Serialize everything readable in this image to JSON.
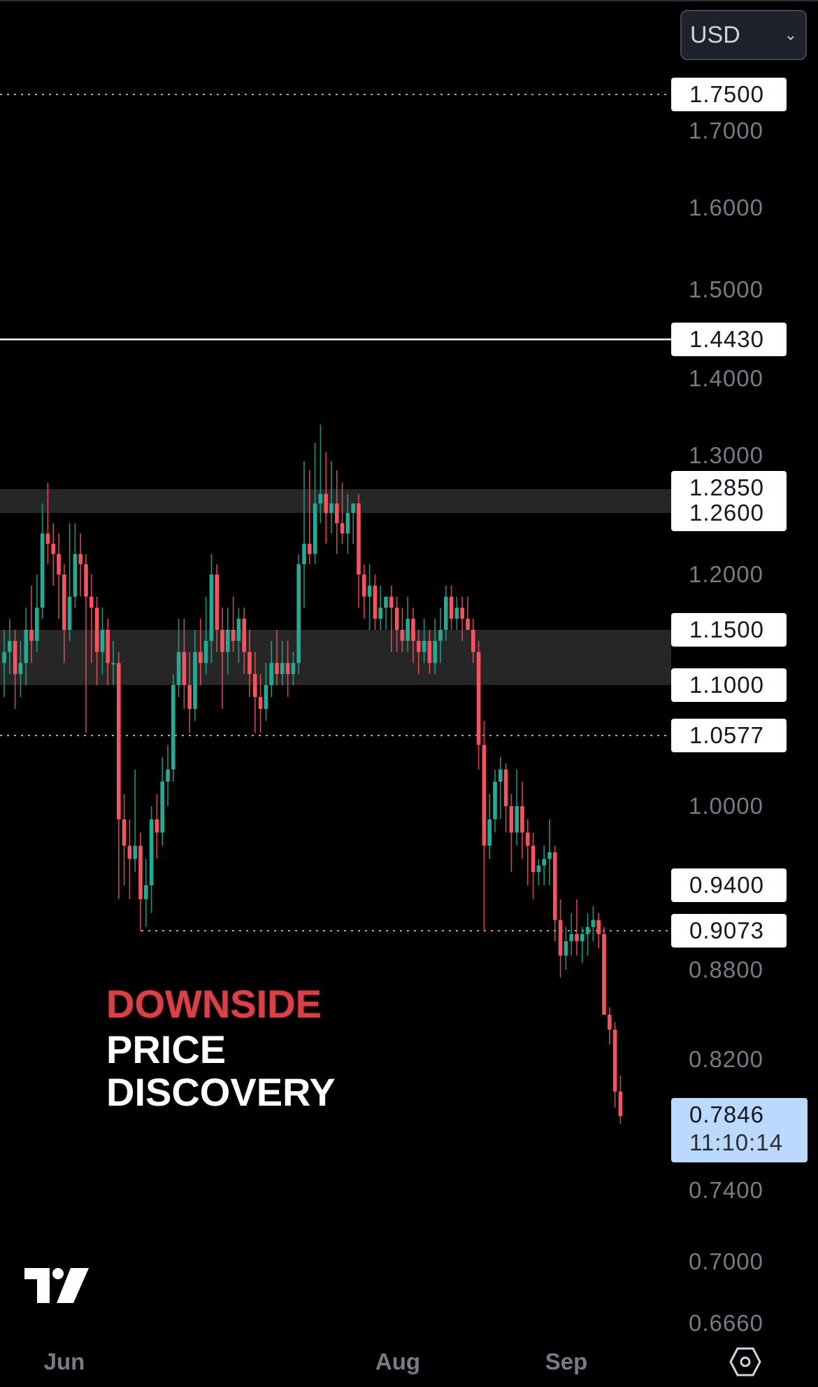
{
  "currency_selector": {
    "label": "USD",
    "icon": "chevron-down-icon"
  },
  "colors": {
    "up": "#22ab94",
    "down": "#f7525f",
    "zone": "#262626",
    "current_price_bg": "#bbd9fb"
  },
  "overlay_text": {
    "line1": "DOWNSIDE",
    "line2": "PRICE",
    "line3": "DISCOVERY"
  },
  "settings_icon": "gear-hexagon-icon",
  "logo": "TV",
  "chart_data": {
    "type": "candlestick",
    "y_scale": "log",
    "ylim": [
      0.666,
      1.75
    ],
    "x_tick_labels": [
      {
        "label": "Jun",
        "index": 11
      },
      {
        "label": "Aug",
        "index": 72
      },
      {
        "label": "Sep",
        "index": 103
      }
    ],
    "y_tick_labels": [
      "1.7000",
      "1.6000",
      "1.5000",
      "1.4000",
      "1.3000",
      "1.2000",
      "1.0000",
      "0.8800",
      "0.8200",
      "0.7400",
      "0.7000",
      "0.6660"
    ],
    "level_labels": [
      {
        "value": "1.7500",
        "line": "dotted"
      },
      {
        "value": "1.4430",
        "line": "solid"
      },
      {
        "value": "1.0577",
        "line": "dotted"
      },
      {
        "value": "0.9073",
        "line": "dotted"
      },
      {
        "value": "1.1500",
        "line": "zone"
      },
      {
        "value": "1.1000",
        "line": "zone"
      },
      {
        "value": "0.9400",
        "line": "none"
      }
    ],
    "zone_labels": {
      "top": "1.2850",
      "bottom": "1.2600"
    },
    "zones": [
      [
        1.26,
        1.285
      ],
      [
        1.1,
        1.15
      ]
    ],
    "current_price": {
      "value": "0.7846",
      "countdown": "11:10:14"
    },
    "candles": [
      [
        1.12,
        1.15,
        1.09,
        1.13
      ],
      [
        1.13,
        1.16,
        1.11,
        1.14
      ],
      [
        1.14,
        1.15,
        1.08,
        1.11
      ],
      [
        1.11,
        1.14,
        1.09,
        1.12
      ],
      [
        1.12,
        1.17,
        1.1,
        1.15
      ],
      [
        1.15,
        1.19,
        1.12,
        1.14
      ],
      [
        1.14,
        1.2,
        1.13,
        1.17
      ],
      [
        1.17,
        1.27,
        1.16,
        1.24
      ],
      [
        1.24,
        1.29,
        1.21,
        1.23
      ],
      [
        1.23,
        1.25,
        1.19,
        1.22
      ],
      [
        1.22,
        1.24,
        1.16,
        1.2
      ],
      [
        1.2,
        1.21,
        1.12,
        1.15
      ],
      [
        1.15,
        1.25,
        1.14,
        1.18
      ],
      [
        1.18,
        1.25,
        1.17,
        1.22
      ],
      [
        1.22,
        1.24,
        1.18,
        1.21
      ],
      [
        1.21,
        1.22,
        1.06,
        1.18
      ],
      [
        1.18,
        1.2,
        1.12,
        1.17
      ],
      [
        1.17,
        1.18,
        1.1,
        1.13
      ],
      [
        1.13,
        1.17,
        1.11,
        1.15
      ],
      [
        1.15,
        1.16,
        1.1,
        1.12
      ],
      [
        1.12,
        1.14,
        1.1,
        1.12
      ],
      [
        1.12,
        1.13,
        0.93,
        0.99
      ],
      [
        0.99,
        1.01,
        0.94,
        0.97
      ],
      [
        0.97,
        0.99,
        0.93,
        0.96
      ],
      [
        0.96,
        1.03,
        0.95,
        0.97
      ],
      [
        0.97,
        0.98,
        0.907,
        0.93
      ],
      [
        0.93,
        0.96,
        0.91,
        0.94
      ],
      [
        0.94,
        1.0,
        0.92,
        0.99
      ],
      [
        0.99,
        1.01,
        0.96,
        0.98
      ],
      [
        0.98,
        1.04,
        0.97,
        1.02
      ],
      [
        1.02,
        1.05,
        1.0,
        1.03
      ],
      [
        1.03,
        1.11,
        1.02,
        1.1
      ],
      [
        1.1,
        1.16,
        1.09,
        1.13
      ],
      [
        1.13,
        1.16,
        1.08,
        1.1
      ],
      [
        1.1,
        1.13,
        1.06,
        1.08
      ],
      [
        1.08,
        1.15,
        1.07,
        1.13
      ],
      [
        1.13,
        1.16,
        1.1,
        1.12
      ],
      [
        1.12,
        1.18,
        1.11,
        1.14
      ],
      [
        1.14,
        1.22,
        1.12,
        1.2
      ],
      [
        1.2,
        1.21,
        1.13,
        1.15
      ],
      [
        1.15,
        1.17,
        1.08,
        1.13
      ],
      [
        1.13,
        1.17,
        1.11,
        1.15
      ],
      [
        1.15,
        1.18,
        1.13,
        1.14
      ],
      [
        1.14,
        1.17,
        1.12,
        1.16
      ],
      [
        1.16,
        1.17,
        1.11,
        1.13
      ],
      [
        1.13,
        1.15,
        1.09,
        1.11
      ],
      [
        1.11,
        1.13,
        1.06,
        1.09
      ],
      [
        1.09,
        1.11,
        1.06,
        1.08
      ],
      [
        1.08,
        1.12,
        1.07,
        1.1
      ],
      [
        1.1,
        1.14,
        1.09,
        1.12
      ],
      [
        1.12,
        1.15,
        1.1,
        1.11
      ],
      [
        1.11,
        1.14,
        1.1,
        1.12
      ],
      [
        1.12,
        1.14,
        1.09,
        1.11
      ],
      [
        1.11,
        1.13,
        1.1,
        1.12
      ],
      [
        1.12,
        1.22,
        1.11,
        1.21
      ],
      [
        1.21,
        1.31,
        1.17,
        1.23
      ],
      [
        1.23,
        1.3,
        1.21,
        1.22
      ],
      [
        1.22,
        1.33,
        1.21,
        1.27
      ],
      [
        1.27,
        1.35,
        1.25,
        1.28
      ],
      [
        1.28,
        1.32,
        1.23,
        1.26
      ],
      [
        1.26,
        1.31,
        1.24,
        1.27
      ],
      [
        1.27,
        1.3,
        1.22,
        1.25
      ],
      [
        1.25,
        1.29,
        1.23,
        1.24
      ],
      [
        1.24,
        1.28,
        1.22,
        1.26
      ],
      [
        1.26,
        1.27,
        1.23,
        1.27
      ],
      [
        1.27,
        1.28,
        1.17,
        1.2
      ],
      [
        1.2,
        1.21,
        1.16,
        1.18
      ],
      [
        1.18,
        1.21,
        1.15,
        1.19
      ],
      [
        1.19,
        1.2,
        1.15,
        1.16
      ],
      [
        1.16,
        1.19,
        1.15,
        1.17
      ],
      [
        1.17,
        1.18,
        1.15,
        1.18
      ],
      [
        1.18,
        1.19,
        1.13,
        1.17
      ],
      [
        1.17,
        1.18,
        1.13,
        1.15
      ],
      [
        1.15,
        1.17,
        1.13,
        1.14
      ],
      [
        1.14,
        1.18,
        1.13,
        1.16
      ],
      [
        1.16,
        1.17,
        1.12,
        1.14
      ],
      [
        1.14,
        1.15,
        1.11,
        1.13
      ],
      [
        1.13,
        1.16,
        1.12,
        1.14
      ],
      [
        1.14,
        1.15,
        1.11,
        1.12
      ],
      [
        1.12,
        1.16,
        1.11,
        1.14
      ],
      [
        1.14,
        1.17,
        1.12,
        1.15
      ],
      [
        1.15,
        1.19,
        1.14,
        1.18
      ],
      [
        1.18,
        1.19,
        1.15,
        1.16
      ],
      [
        1.16,
        1.18,
        1.15,
        1.17
      ],
      [
        1.17,
        1.18,
        1.14,
        1.16
      ],
      [
        1.16,
        1.18,
        1.15,
        1.15
      ],
      [
        1.15,
        1.16,
        1.12,
        1.13
      ],
      [
        1.13,
        1.14,
        1.03,
        1.05
      ],
      [
        1.05,
        1.07,
        0.907,
        0.97
      ],
      [
        0.97,
        1.01,
        0.96,
        0.99
      ],
      [
        0.99,
        1.03,
        0.98,
        1.02
      ],
      [
        1.02,
        1.04,
        0.99,
        1.03
      ],
      [
        1.03,
        1.035,
        0.98,
        1.0
      ],
      [
        1.0,
        1.01,
        0.95,
        0.98
      ],
      [
        0.98,
        1.03,
        0.97,
        1.0
      ],
      [
        1.0,
        1.02,
        0.96,
        0.98
      ],
      [
        0.98,
        0.99,
        0.94,
        0.97
      ],
      [
        0.97,
        0.98,
        0.93,
        0.95
      ],
      [
        0.95,
        0.96,
        0.94,
        0.955
      ],
      [
        0.955,
        0.97,
        0.94,
        0.96
      ],
      [
        0.96,
        0.99,
        0.94,
        0.965
      ],
      [
        0.965,
        0.97,
        0.9,
        0.915
      ],
      [
        0.915,
        0.93,
        0.875,
        0.89
      ],
      [
        0.89,
        0.91,
        0.88,
        0.9
      ],
      [
        0.9,
        0.92,
        0.89,
        0.905
      ],
      [
        0.905,
        0.93,
        0.89,
        0.9
      ],
      [
        0.9,
        0.91,
        0.885,
        0.905
      ],
      [
        0.905,
        0.92,
        0.89,
        0.91
      ],
      [
        0.91,
        0.925,
        0.9,
        0.915
      ],
      [
        0.915,
        0.92,
        0.895,
        0.905
      ],
      [
        0.905,
        0.91,
        0.85,
        0.85
      ],
      [
        0.85,
        0.855,
        0.83,
        0.84
      ],
      [
        0.84,
        0.845,
        0.79,
        0.8
      ],
      [
        0.8,
        0.81,
        0.78,
        0.7846
      ]
    ]
  }
}
